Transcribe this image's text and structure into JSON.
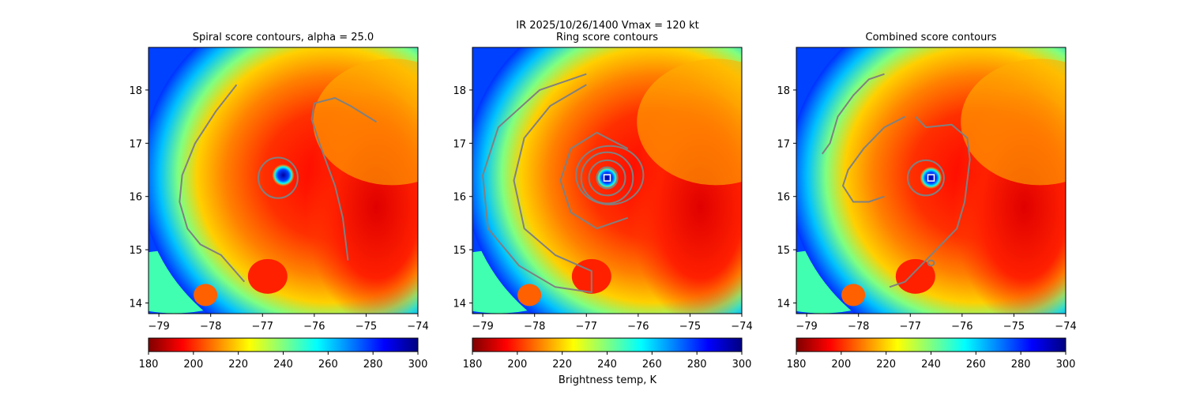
{
  "suptitle_line": "IR  2025/10/26/1400    Vmax = 120 kt",
  "colorbar_label": "Brightness temp, K",
  "colors": {
    "contour": "#808080",
    "eye_marker": "#ffffff",
    "colormap": [
      "#800000",
      "#ff0000",
      "#ff8000",
      "#ffff00",
      "#80ff80",
      "#00ffff",
      "#0080ff",
      "#0000ff",
      "#000080"
    ]
  },
  "chart_data": [
    {
      "type": "heatmap",
      "title": "Spiral score contours, alpha = 25.0",
      "xlim": [
        -79.2,
        -74.0
      ],
      "ylim": [
        13.8,
        18.8
      ],
      "xticks": [
        "−79",
        "−78",
        "−77",
        "−76",
        "−75",
        "−74"
      ],
      "yticks": [
        "14",
        "15",
        "16",
        "17",
        "18"
      ],
      "colorbar": {
        "range": [
          180,
          300
        ],
        "ticks": [
          "180",
          "200",
          "220",
          "240",
          "260",
          "280",
          "300"
        ],
        "reversed_jet": true
      },
      "eye_center": [
        -76.6,
        16.4
      ],
      "contours": [
        {
          "name": "outer-spiral-west",
          "points": [
            [
              -77.5,
              18.1
            ],
            [
              -77.9,
              17.6
            ],
            [
              -78.3,
              17.0
            ],
            [
              -78.55,
              16.4
            ],
            [
              -78.6,
              15.9
            ],
            [
              -78.45,
              15.4
            ],
            [
              -78.2,
              15.1
            ],
            [
              -77.8,
              14.9
            ],
            [
              -77.35,
              14.4
            ]
          ]
        },
        {
          "name": "spiral-east",
          "points": [
            [
              -74.8,
              17.4
            ],
            [
              -75.3,
              17.7
            ],
            [
              -75.6,
              17.85
            ],
            [
              -76.0,
              17.75
            ],
            [
              -76.05,
              17.45
            ],
            [
              -75.9,
              17.0
            ],
            [
              -75.75,
              16.6
            ],
            [
              -75.6,
              16.2
            ],
            [
              -75.45,
              15.6
            ],
            [
              -75.4,
              15.2
            ],
            [
              -75.35,
              14.8
            ]
          ]
        },
        {
          "name": "eyewall-ring",
          "ellipse": {
            "center": [
              -76.7,
              16.35
            ],
            "rx": 0.38,
            "ry": 0.38
          }
        }
      ]
    },
    {
      "type": "heatmap",
      "title": "Ring score contours",
      "xlim": [
        -79.2,
        -74.0
      ],
      "ylim": [
        13.8,
        18.8
      ],
      "xticks": [
        "−79",
        "−78",
        "−77",
        "−76",
        "−75",
        "−74"
      ],
      "yticks": [
        "14",
        "15",
        "16",
        "17",
        "18"
      ],
      "colorbar": {
        "range": [
          180,
          300
        ],
        "ticks": [
          "180",
          "200",
          "220",
          "240",
          "260",
          "280",
          "300"
        ],
        "reversed_jet": false
      },
      "eye_center": [
        -76.6,
        16.35
      ],
      "contours": [
        {
          "name": "ring-inner-1",
          "ellipse": {
            "center": [
              -76.6,
              16.35
            ],
            "rx": 0.2,
            "ry": 0.2
          }
        },
        {
          "name": "ring-inner-2",
          "ellipse": {
            "center": [
              -76.6,
              16.35
            ],
            "rx": 0.35,
            "ry": 0.33
          }
        },
        {
          "name": "ring-inner-3",
          "ellipse": {
            "center": [
              -76.6,
              16.35
            ],
            "rx": 0.5,
            "ry": 0.48
          }
        },
        {
          "name": "ring-inner-4",
          "ellipse": {
            "center": [
              -76.55,
              16.4
            ],
            "rx": 0.65,
            "ry": 0.55
          }
        },
        {
          "name": "ring-spiral",
          "points": [
            [
              -76.2,
              16.9
            ],
            [
              -76.8,
              17.2
            ],
            [
              -77.3,
              16.9
            ],
            [
              -77.5,
              16.3
            ],
            [
              -77.3,
              15.7
            ],
            [
              -76.8,
              15.4
            ],
            [
              -76.2,
              15.6
            ]
          ]
        },
        {
          "name": "outer-band-west",
          "points": [
            [
              -77.0,
              18.3
            ],
            [
              -77.9,
              18.0
            ],
            [
              -78.7,
              17.3
            ],
            [
              -79.0,
              16.4
            ],
            [
              -78.9,
              15.4
            ],
            [
              -78.3,
              14.7
            ],
            [
              -77.6,
              14.3
            ],
            [
              -76.9,
              14.2
            ],
            [
              -76.9,
              14.6
            ],
            [
              -77.6,
              14.9
            ],
            [
              -78.2,
              15.4
            ],
            [
              -78.4,
              16.3
            ],
            [
              -78.2,
              17.1
            ],
            [
              -77.7,
              17.7
            ],
            [
              -77.0,
              18.1
            ]
          ]
        }
      ]
    },
    {
      "type": "heatmap",
      "title": "Combined score contours",
      "xlim": [
        -79.2,
        -74.0
      ],
      "ylim": [
        13.8,
        18.8
      ],
      "xticks": [
        "−79",
        "−78",
        "−77",
        "−76",
        "−75",
        "−74"
      ],
      "yticks": [
        "14",
        "15",
        "16",
        "17",
        "18"
      ],
      "colorbar": {
        "range": [
          180,
          300
        ],
        "ticks": [
          "180",
          "200",
          "220",
          "240",
          "260",
          "280",
          "300"
        ],
        "reversed_jet": true
      },
      "eye_center": [
        -76.6,
        16.35
      ],
      "contours": [
        {
          "name": "outer-spiral-north",
          "points": [
            [
              -77.5,
              18.3
            ],
            [
              -77.8,
              18.2
            ],
            [
              -78.1,
              17.9
            ],
            [
              -78.4,
              17.5
            ],
            [
              -78.55,
              17.0
            ],
            [
              -78.7,
              16.8
            ]
          ]
        },
        {
          "name": "closed-spiral",
          "points": [
            [
              -77.1,
              17.5
            ],
            [
              -77.5,
              17.3
            ],
            [
              -77.9,
              16.9
            ],
            [
              -78.2,
              16.5
            ],
            [
              -78.3,
              16.2
            ],
            [
              -78.1,
              15.9
            ],
            [
              -77.8,
              15.9
            ],
            [
              -77.5,
              16.0
            ]
          ]
        },
        {
          "name": "spiral-east",
          "points": [
            [
              -76.9,
              17.5
            ],
            [
              -76.7,
              17.3
            ],
            [
              -76.2,
              17.35
            ],
            [
              -75.9,
              17.1
            ],
            [
              -75.85,
              16.7
            ],
            [
              -75.9,
              16.3
            ],
            [
              -75.95,
              15.9
            ],
            [
              -76.1,
              15.4
            ],
            [
              -76.4,
              15.1
            ],
            [
              -76.8,
              14.7
            ],
            [
              -77.1,
              14.4
            ],
            [
              -77.4,
              14.3
            ]
          ]
        },
        {
          "name": "eyewall-ring",
          "ellipse": {
            "center": [
              -76.7,
              16.35
            ],
            "rx": 0.35,
            "ry": 0.33
          }
        },
        {
          "name": "small-loop",
          "ellipse": {
            "center": [
              -76.6,
              14.75
            ],
            "rx": 0.06,
            "ry": 0.05
          }
        }
      ]
    }
  ]
}
